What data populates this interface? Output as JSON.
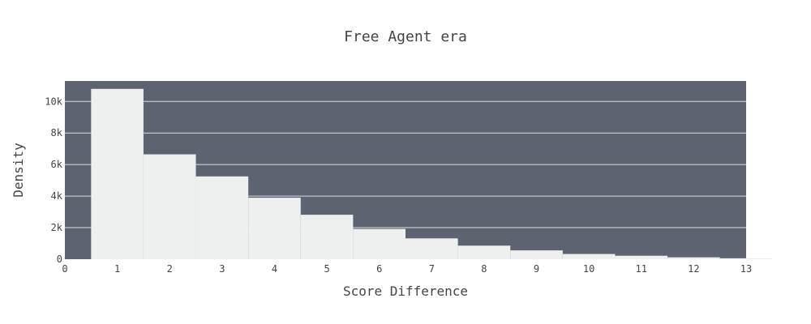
{
  "chart_data": {
    "type": "bar",
    "title": "Free Agent era",
    "xlabel": "Score Difference",
    "ylabel": "Density",
    "x": [
      1,
      2,
      3,
      4,
      5,
      6,
      7,
      8,
      9,
      10,
      11,
      12,
      13
    ],
    "values": [
      10800,
      6650,
      5250,
      3900,
      2820,
      1920,
      1320,
      860,
      560,
      330,
      220,
      120,
      60
    ],
    "xlim": [
      0,
      13
    ],
    "ylim": [
      0,
      11300
    ],
    "xticks": [
      0,
      1,
      2,
      3,
      4,
      5,
      6,
      7,
      8,
      9,
      10,
      11,
      12,
      13
    ],
    "xtick_labels": [
      "0",
      "1",
      "2",
      "3",
      "4",
      "5",
      "6",
      "7",
      "8",
      "9",
      "10",
      "11",
      "12",
      "13"
    ],
    "yticks": [
      0,
      2000,
      4000,
      6000,
      8000,
      10000
    ],
    "ytick_labels": [
      "0",
      "2k",
      "4k",
      "6k",
      "8k",
      "10k"
    ],
    "grid": true,
    "colors": {
      "plot_background": "#5d6370",
      "bar_fill": "#eef0ef",
      "gridline": "#d9dce2",
      "text": "#444444"
    }
  }
}
